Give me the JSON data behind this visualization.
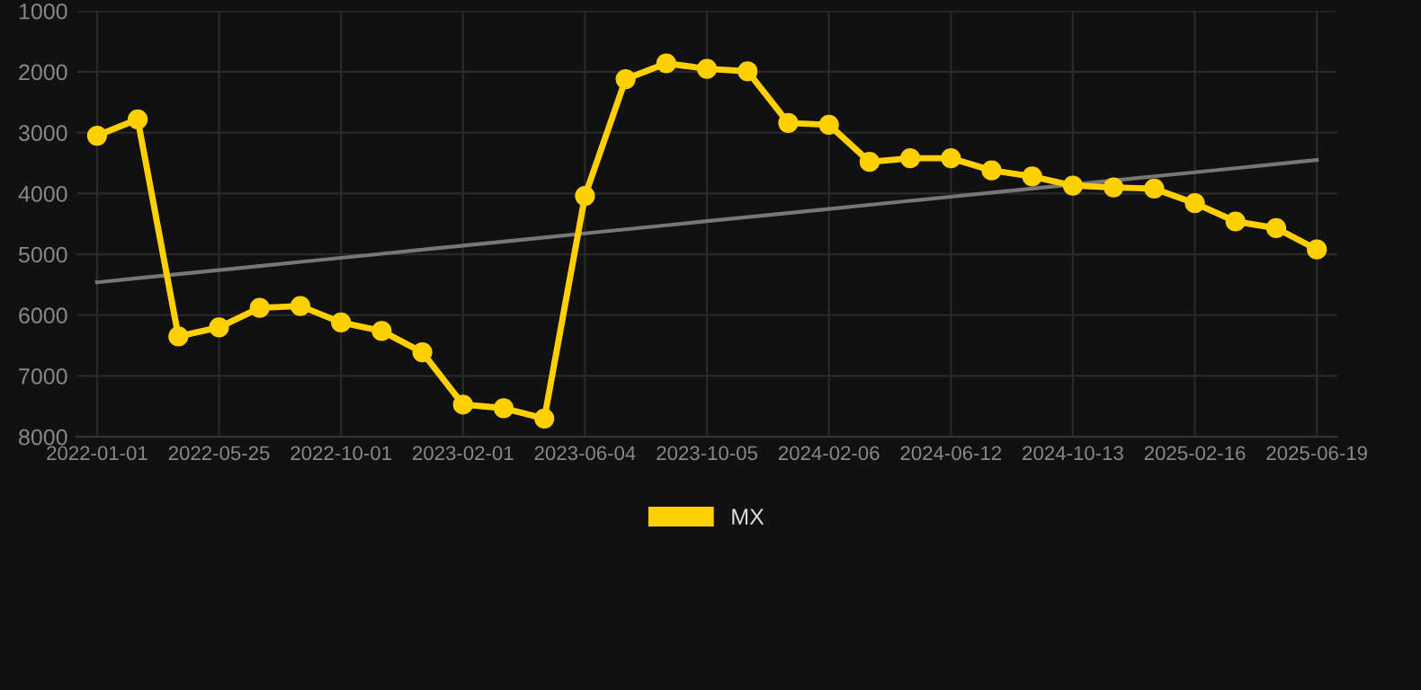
{
  "chart_data": {
    "type": "line",
    "categories": [
      "2022-01-01",
      null,
      null,
      "2022-05-25",
      null,
      null,
      "2022-10-01",
      null,
      null,
      "2023-02-01",
      null,
      null,
      "2023-06-04",
      null,
      null,
      "2023-10-05",
      null,
      null,
      "2024-02-06",
      null,
      null,
      "2024-06-12",
      null,
      null,
      "2024-10-13",
      null,
      null,
      "2025-02-16",
      null,
      null,
      "2025-06-19"
    ],
    "series": [
      {
        "name": "MX",
        "color": "#ffd000",
        "marker": "circle",
        "values": [
          3050,
          2780,
          6350,
          6200,
          5880,
          5850,
          6120,
          6260,
          6610,
          7470,
          7530,
          7700,
          4040,
          2120,
          1860,
          1950,
          1990,
          2840,
          2870,
          3480,
          3420,
          3420,
          3620,
          3720,
          3870,
          3900,
          3920,
          4160,
          4460,
          4570,
          4920
        ]
      },
      {
        "color": "#777777",
        "marker": "none",
        "values": [
          5460,
          5393,
          5326,
          5259,
          5192,
          5125,
          5058,
          4991,
          4924,
          4857,
          4790,
          4723,
          4656,
          4589,
          4522,
          4455,
          4388,
          4321,
          4254,
          4187,
          4120,
          4053,
          3986,
          3919,
          3852,
          3785,
          3718,
          3651,
          3584,
          3517,
          3450
        ]
      }
    ],
    "ylim": [
      8000,
      1000
    ],
    "yticks": [
      1000,
      2000,
      3000,
      4000,
      5000,
      6000,
      7000,
      8000
    ],
    "grid": true,
    "legend": "bottom"
  }
}
